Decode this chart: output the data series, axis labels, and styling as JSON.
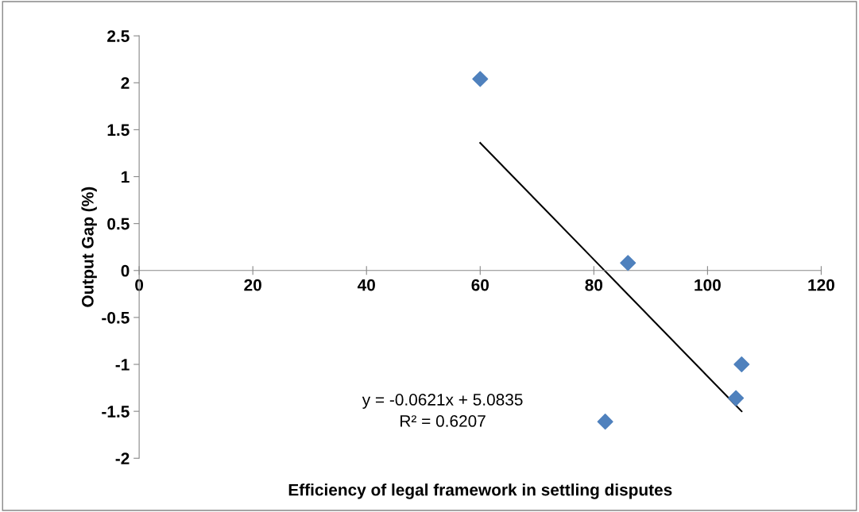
{
  "chart_data": {
    "type": "scatter",
    "xlabel": "Efficiency of legal framework in settling disputes",
    "ylabel": "Output Gap (%)",
    "x": [
      60,
      86,
      106,
      105,
      82
    ],
    "series": [
      {
        "color": "#4f81bd",
        "values": [
          2.04,
          0.08,
          -1.0,
          -1.36,
          -1.61
        ],
        "marker": "diamond"
      },
      {
        "type": "line",
        "color": "#000000",
        "x": [
          60,
          106
        ],
        "values": [
          1.36,
          -1.5
        ],
        "marker": "none",
        "line_style": "solid"
      }
    ],
    "xlim": [
      0,
      120
    ],
    "xticks": [
      0,
      20,
      40,
      60,
      80,
      100,
      120
    ],
    "ylim": [
      -2,
      2.5
    ],
    "yticks": [
      -2,
      -1.5,
      -1,
      -0.5,
      0,
      0.5,
      1,
      1.5,
      2,
      2.5
    ],
    "annotations": [
      "y = -0.0621x + 5.0835\nR² = 0.6207"
    ],
    "grid": false,
    "legend": false
  }
}
